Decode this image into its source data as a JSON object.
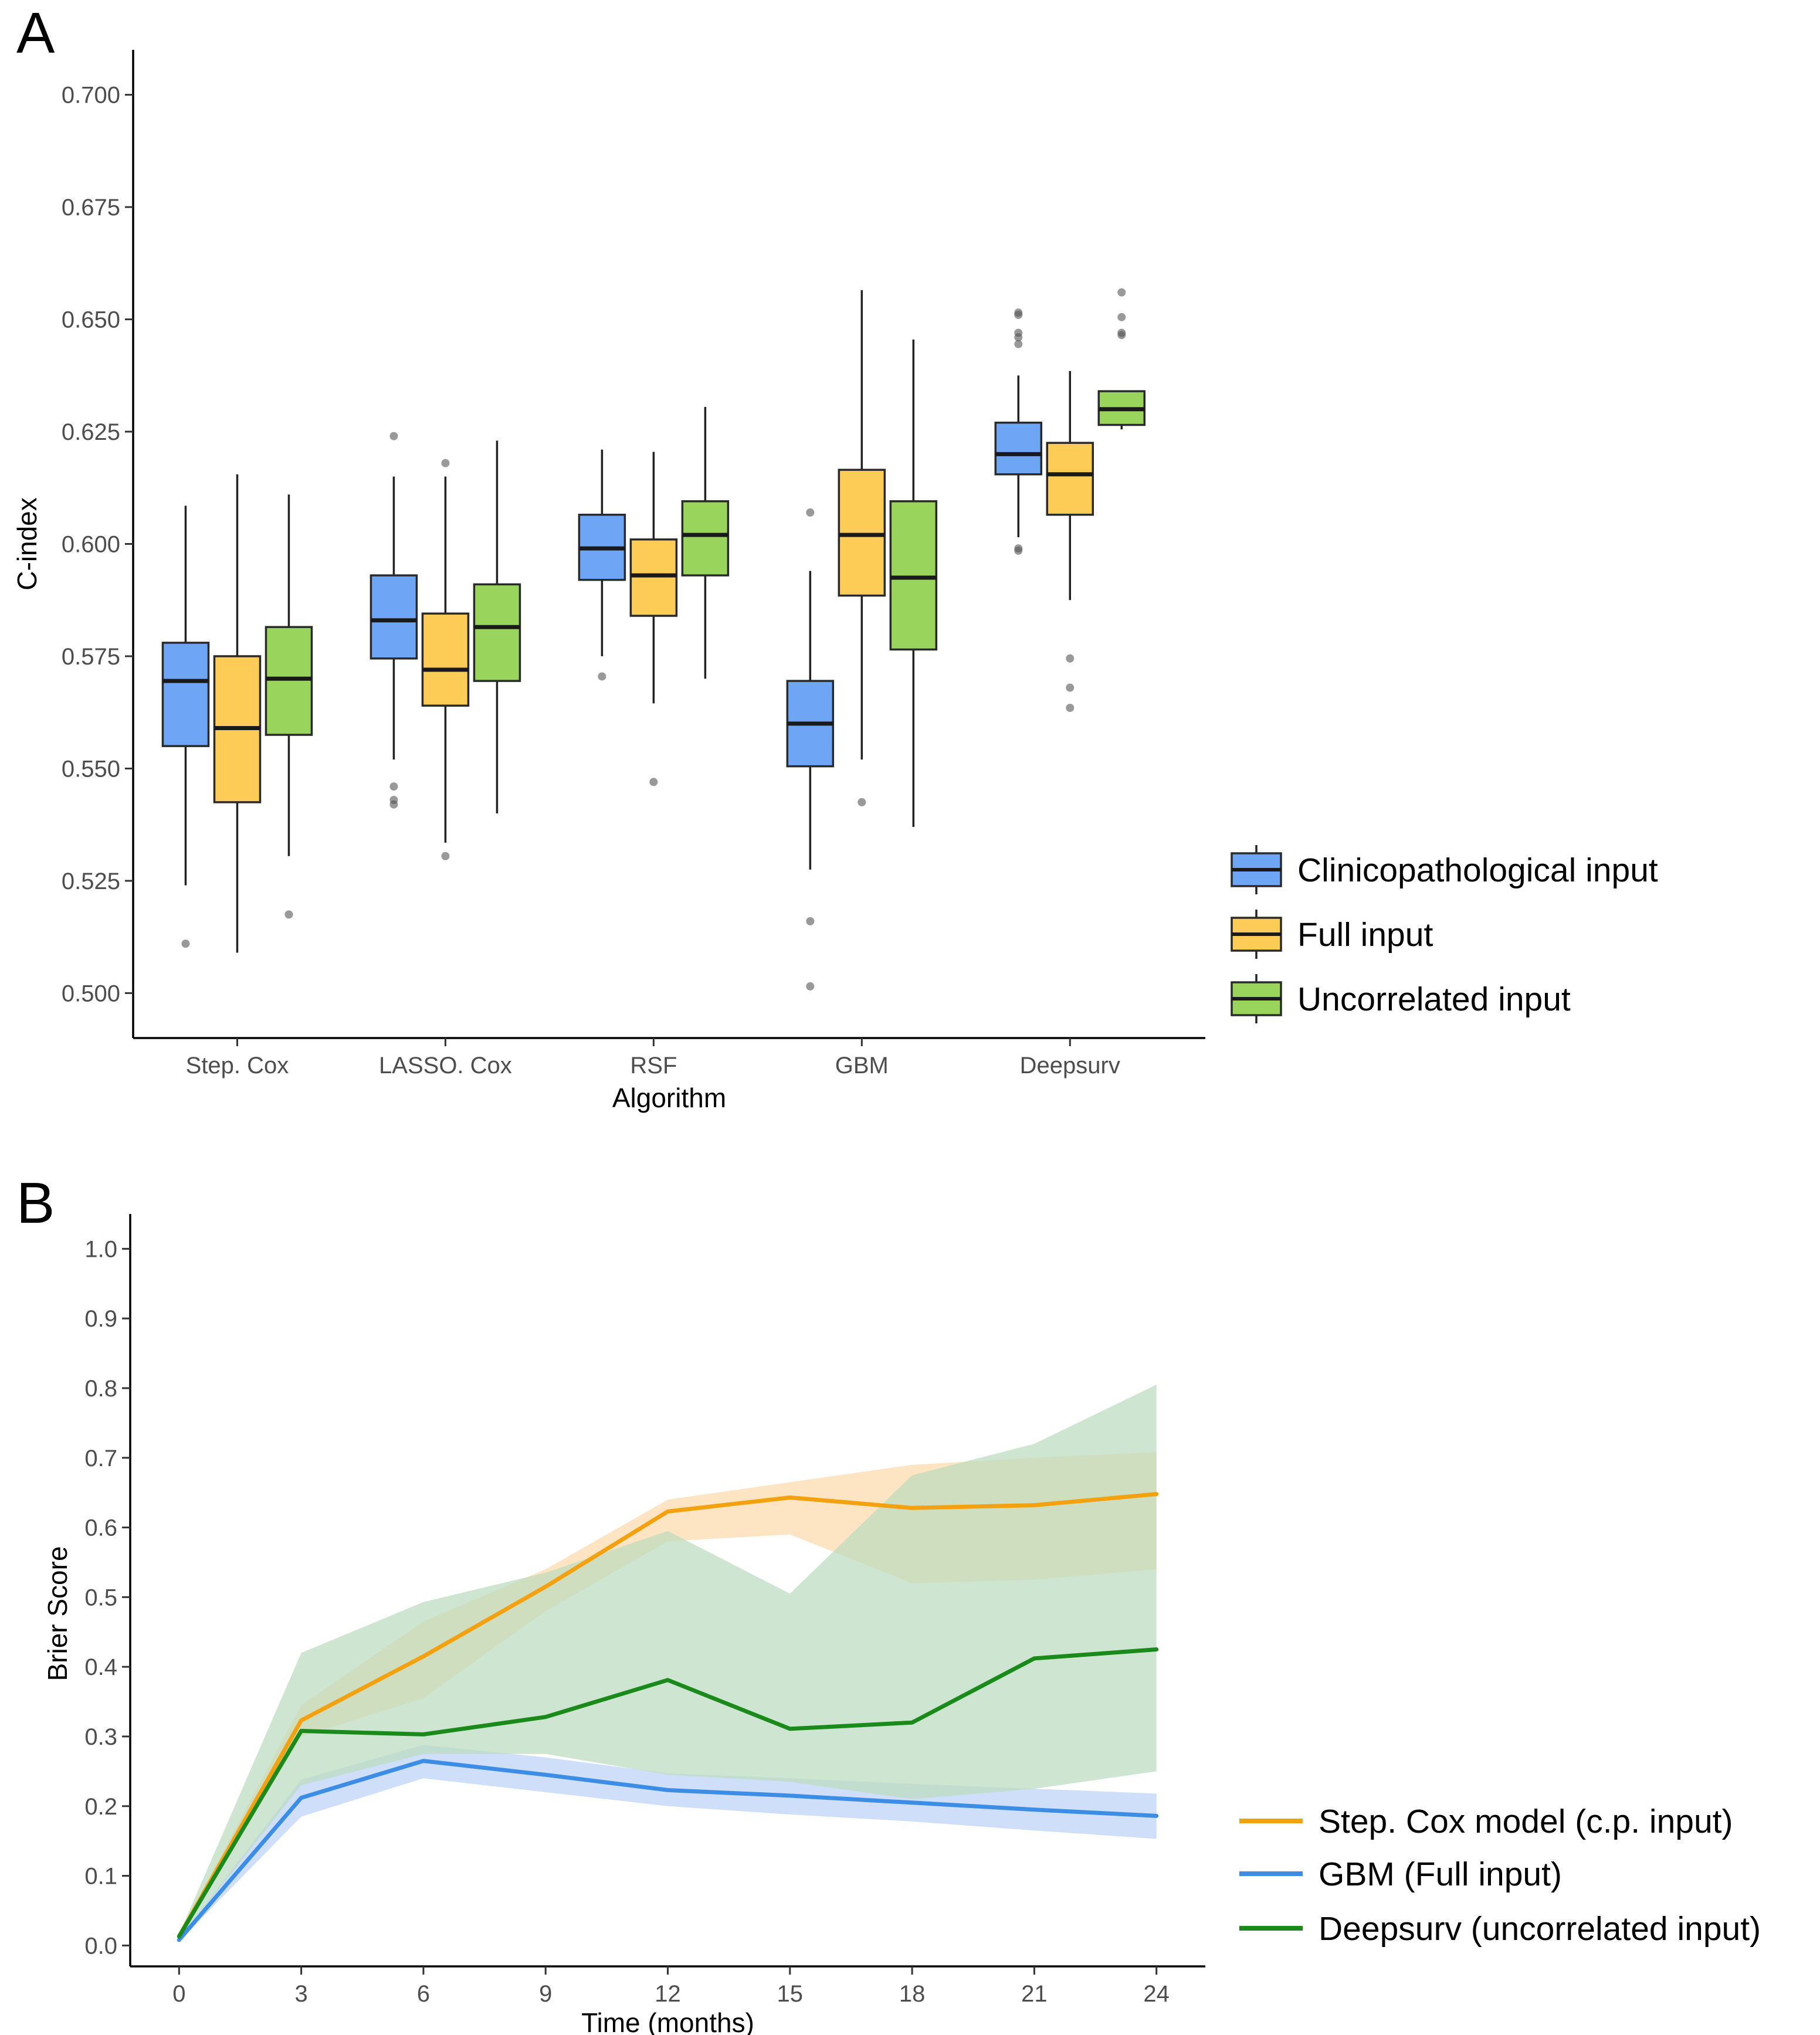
{
  "panels": {
    "a_label": "A",
    "b_label": "B"
  },
  "chart_data": [
    {
      "type": "box",
      "panel": "A",
      "xlabel": "Algorithm",
      "ylabel": "C-index",
      "ylim": [
        0.49,
        0.71
      ],
      "yticks": [
        0.5,
        0.525,
        0.55,
        0.575,
        0.6,
        0.625,
        0.65,
        0.675,
        0.7
      ],
      "ytick_labels": [
        "0.500",
        "0.525",
        "0.550",
        "0.575",
        "0.600",
        "0.625",
        "0.650",
        "0.675",
        "0.700"
      ],
      "categories": [
        "Step. Cox",
        "LASSO. Cox",
        "RSF",
        "GBM",
        "Deepsurv"
      ],
      "legend_position": "right",
      "series": [
        {
          "name": "Clinicopathological input",
          "color": "#6ea6f5",
          "boxes": [
            {
              "whisker_low": 0.524,
              "q1": 0.555,
              "median": 0.5695,
              "q3": 0.578,
              "whisker_high": 0.6085,
              "outliers": [
                0.511
              ]
            },
            {
              "whisker_low": 0.552,
              "q1": 0.5745,
              "median": 0.583,
              "q3": 0.593,
              "whisker_high": 0.615,
              "outliers": [
                0.624,
                0.546,
                0.543,
                0.542
              ]
            },
            {
              "whisker_low": 0.575,
              "q1": 0.592,
              "median": 0.599,
              "q3": 0.6065,
              "whisker_high": 0.621,
              "outliers": [
                0.5705
              ]
            },
            {
              "whisker_low": 0.5275,
              "q1": 0.5505,
              "median": 0.56,
              "q3": 0.5695,
              "whisker_high": 0.594,
              "outliers": [
                0.607,
                0.516,
                0.5015
              ]
            },
            {
              "whisker_low": 0.6015,
              "q1": 0.6155,
              "median": 0.62,
              "q3": 0.627,
              "whisker_high": 0.6375,
              "outliers": [
                0.6515,
                0.651,
                0.647,
                0.646,
                0.6445,
                0.599,
                0.5985
              ]
            }
          ]
        },
        {
          "name": "Full input",
          "color": "#fdcc56",
          "boxes": [
            {
              "whisker_low": 0.509,
              "q1": 0.5425,
              "median": 0.559,
              "q3": 0.575,
              "whisker_high": 0.6155,
              "outliers": []
            },
            {
              "whisker_low": 0.5335,
              "q1": 0.564,
              "median": 0.572,
              "q3": 0.5845,
              "whisker_high": 0.615,
              "outliers": [
                0.618,
                0.5305
              ]
            },
            {
              "whisker_low": 0.5645,
              "q1": 0.584,
              "median": 0.593,
              "q3": 0.601,
              "whisker_high": 0.6205,
              "outliers": [
                0.547
              ]
            },
            {
              "whisker_low": 0.552,
              "q1": 0.5885,
              "median": 0.602,
              "q3": 0.6165,
              "whisker_high": 0.6565,
              "outliers": [
                0.5425
              ]
            },
            {
              "whisker_low": 0.5875,
              "q1": 0.6065,
              "median": 0.6155,
              "q3": 0.6225,
              "whisker_high": 0.6385,
              "outliers": [
                0.5745,
                0.568,
                0.5635
              ]
            }
          ]
        },
        {
          "name": "Uncorrelated input",
          "color": "#99d45c",
          "boxes": [
            {
              "whisker_low": 0.5305,
              "q1": 0.5575,
              "median": 0.57,
              "q3": 0.5815,
              "whisker_high": 0.611,
              "outliers": [
                0.5175
              ]
            },
            {
              "whisker_low": 0.54,
              "q1": 0.5695,
              "median": 0.5815,
              "q3": 0.591,
              "whisker_high": 0.623,
              "outliers": []
            },
            {
              "whisker_low": 0.57,
              "q1": 0.593,
              "median": 0.602,
              "q3": 0.6095,
              "whisker_high": 0.6305,
              "outliers": []
            },
            {
              "whisker_low": 0.537,
              "q1": 0.5765,
              "median": 0.5925,
              "q3": 0.6095,
              "whisker_high": 0.6455,
              "outliers": []
            },
            {
              "whisker_low": 0.6255,
              "q1": 0.6265,
              "median": 0.63,
              "q3": 0.634,
              "whisker_high": 0.634,
              "outliers": [
                0.656,
                0.6505,
                0.647,
                0.6465
              ]
            }
          ]
        }
      ]
    },
    {
      "type": "line",
      "panel": "B",
      "xlabel": "Time (months)",
      "ylabel": "Brier Score",
      "x": [
        0,
        3,
        6,
        9,
        12,
        15,
        18,
        21,
        24
      ],
      "xlim": [
        -1.2,
        25.2
      ],
      "ylim": [
        -0.03,
        1.05
      ],
      "yticks": [
        0.0,
        0.1,
        0.2,
        0.3,
        0.4,
        0.5,
        0.6,
        0.7,
        0.8,
        0.9,
        1.0
      ],
      "ytick_labels": [
        "0.0",
        "0.1",
        "0.2",
        "0.3",
        "0.4",
        "0.5",
        "0.6",
        "0.7",
        "0.8",
        "0.9",
        "1.0"
      ],
      "legend_position": "bottom-right",
      "series": [
        {
          "name": "Step. Cox model (c.p. input)",
          "color": "#f4a10f",
          "band_color": "#fcd9a8",
          "values": [
            0.013,
            0.323,
            0.415,
            0.515,
            0.623,
            0.643,
            0.628,
            0.632,
            0.648
          ],
          "lower": [
            0.01,
            0.3,
            0.355,
            0.48,
            0.58,
            0.59,
            0.52,
            0.525,
            0.54
          ],
          "upper": [
            0.016,
            0.345,
            0.465,
            0.54,
            0.64,
            0.665,
            0.69,
            0.7,
            0.708
          ]
        },
        {
          "name": "GBM (Full input)",
          "color": "#3c8de6",
          "band_color": "#bbd2f6",
          "values": [
            0.008,
            0.212,
            0.265,
            0.245,
            0.223,
            0.215,
            0.205,
            0.195,
            0.186
          ],
          "lower": [
            0.006,
            0.185,
            0.24,
            0.22,
            0.2,
            0.188,
            0.178,
            0.165,
            0.153
          ],
          "upper": [
            0.01,
            0.238,
            0.288,
            0.27,
            0.247,
            0.24,
            0.232,
            0.225,
            0.218
          ]
        },
        {
          "name": "Deepsurv (uncorrelated input)",
          "color": "#1a8a1a",
          "band_color": "#b9dcbd",
          "values": [
            0.013,
            0.308,
            0.303,
            0.328,
            0.381,
            0.311,
            0.32,
            0.412,
            0.425
          ],
          "lower": [
            0.01,
            0.23,
            0.275,
            0.275,
            0.245,
            0.235,
            0.21,
            0.225,
            0.25
          ],
          "upper": [
            0.016,
            0.42,
            0.493,
            0.535,
            0.595,
            0.505,
            0.675,
            0.72,
            0.805
          ]
        }
      ]
    }
  ]
}
